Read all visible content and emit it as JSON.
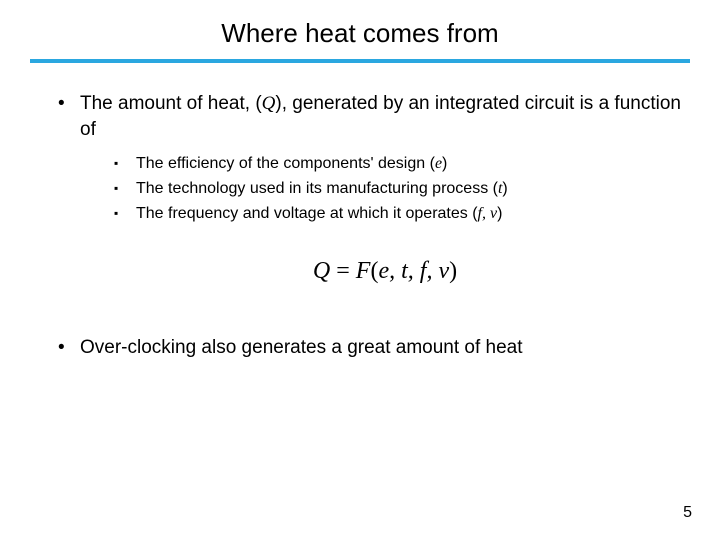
{
  "colors": {
    "rule": "#2aa7e0",
    "text": "#000000",
    "background": "#ffffff"
  },
  "title": "Where heat comes from",
  "bullets": {
    "b1": {
      "lead": "The amount of heat, (",
      "sym": "Q",
      "tail": "), generated by an integrated circuit is a function of",
      "sub": {
        "s1": {
          "text": "The efficiency of the components' design (",
          "var": "e",
          "end": ")"
        },
        "s2": {
          "text": "The technology used in its manufacturing process (",
          "var": "t",
          "end": ")"
        },
        "s3": {
          "text": "The frequency and voltage at which it operates (",
          "var": "f, v",
          "end": ")"
        }
      }
    },
    "b2": {
      "text": "Over-clocking also generates a great amount of heat"
    }
  },
  "equation": {
    "Q": "Q",
    "eq": " = ",
    "F": "F",
    "open": "(",
    "args": "e, t, f, v",
    "close": ")"
  },
  "page_number": "5"
}
